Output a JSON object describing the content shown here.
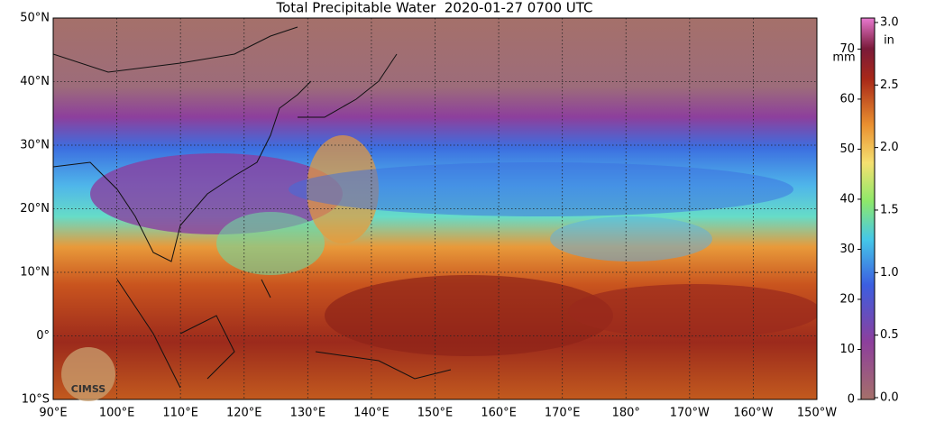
{
  "header": {
    "title": "Total Precipitable Water  2020-01-27 0700 UTC"
  },
  "map": {
    "lat_labels": [
      "50°N",
      "40°N",
      "30°N",
      "20°N",
      "10°N",
      "0°",
      "10°S"
    ],
    "lon_labels": [
      "90°E",
      "100°E",
      "110°E",
      "120°E",
      "130°E",
      "140°E",
      "150°E",
      "160°E",
      "170°E",
      "180°",
      "170°W",
      "160°W",
      "150°W"
    ],
    "logo": "CIMSS"
  },
  "colorbar": {
    "mm_unit": "mm",
    "in_unit": "in",
    "mm_ticks": [
      "0",
      "10",
      "20",
      "30",
      "40",
      "50",
      "60",
      "70"
    ],
    "in_ticks": [
      "0.0",
      "0.5",
      "1.0",
      "1.5",
      "2.0",
      "2.5",
      "3.0"
    ]
  }
}
